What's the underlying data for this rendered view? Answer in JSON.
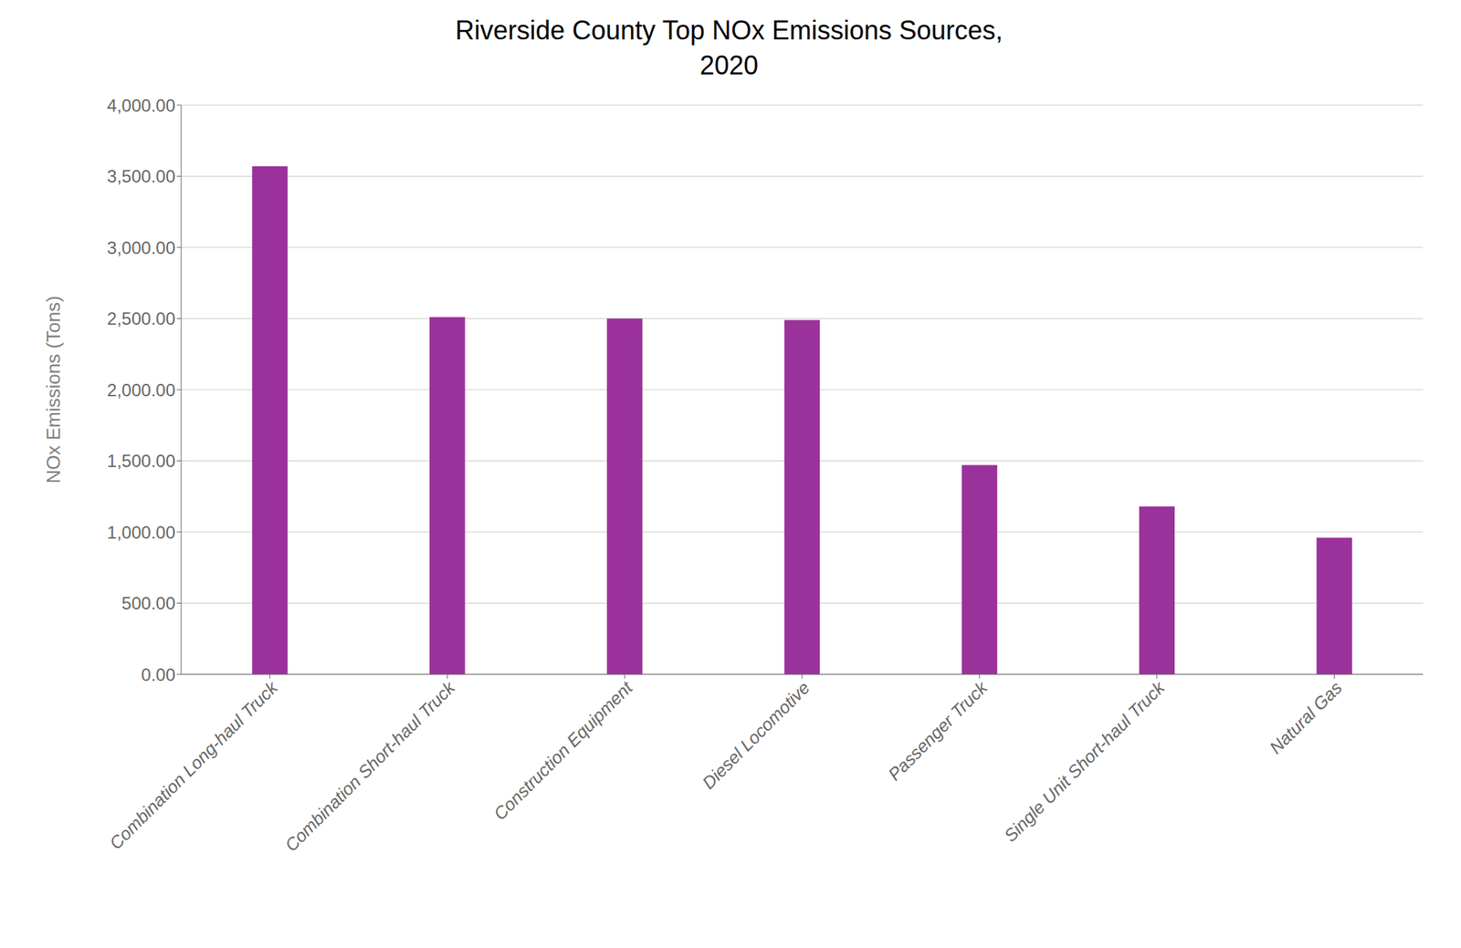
{
  "chart_data": {
    "type": "bar",
    "title": "Riverside County Top NOx Emissions Sources,\n2020",
    "ylabel": "NOx Emissions (Tons)",
    "categories": [
      "Combination Long-haul Truck",
      "Combination Short-haul Truck",
      "Construction Equipment",
      "Diesel Locomotive",
      "Passenger Truck",
      "Single Unit Short-haul Truck",
      "Natural Gas"
    ],
    "values": [
      3570,
      2510,
      2500,
      2490,
      1470,
      1180,
      960
    ],
    "color": "#9B319B",
    "ylim": [
      0,
      4000
    ],
    "yticks": [
      {
        "value": 0,
        "label": "0.00"
      },
      {
        "value": 500,
        "label": "500.00"
      },
      {
        "value": 1000,
        "label": "1,000.00"
      },
      {
        "value": 1500,
        "label": "1,500.00"
      },
      {
        "value": 2000,
        "label": "2,000.00"
      },
      {
        "value": 2500,
        "label": "2,500.00"
      },
      {
        "value": 3000,
        "label": "3,000.00"
      },
      {
        "value": 3500,
        "label": "3,500.00"
      },
      {
        "value": 4000,
        "label": "4,000.00"
      }
    ],
    "grid": true
  }
}
